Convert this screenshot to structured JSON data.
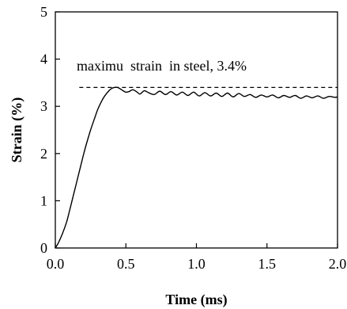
{
  "chart_data": {
    "type": "line",
    "xlabel": "Time (ms)",
    "ylabel": "Strain (%)",
    "xlim": [
      0,
      2
    ],
    "ylim": [
      0,
      5
    ],
    "x_ticks": [
      "0.0",
      "0.5",
      "1.0",
      "1.5",
      "2.0"
    ],
    "y_ticks": [
      "0",
      "1",
      "2",
      "3",
      "4",
      "5"
    ],
    "grid": false,
    "legend": "none",
    "annotation": "maximu  strain  in steel, 3.4%",
    "reference_line": {
      "y": 3.4,
      "style": "dashed"
    },
    "series": [
      {
        "color": "#000000",
        "x": [
          0.0,
          0.02,
          0.05,
          0.08,
          0.1,
          0.12,
          0.15,
          0.18,
          0.2,
          0.22,
          0.25,
          0.28,
          0.3,
          0.33,
          0.35,
          0.38,
          0.4,
          0.42,
          0.44,
          0.46,
          0.48,
          0.5,
          0.52,
          0.55,
          0.58,
          0.6,
          0.63,
          0.66,
          0.7,
          0.74,
          0.78,
          0.82,
          0.86,
          0.9,
          0.94,
          0.98,
          1.02,
          1.06,
          1.1,
          1.14,
          1.18,
          1.22,
          1.26,
          1.3,
          1.34,
          1.38,
          1.42,
          1.46,
          1.5,
          1.54,
          1.58,
          1.62,
          1.66,
          1.7,
          1.74,
          1.78,
          1.82,
          1.86,
          1.9,
          1.94,
          1.98,
          2.0
        ],
        "y": [
          0.0,
          0.1,
          0.3,
          0.55,
          0.78,
          1.02,
          1.38,
          1.74,
          1.98,
          2.2,
          2.5,
          2.76,
          2.93,
          3.12,
          3.22,
          3.33,
          3.38,
          3.4,
          3.4,
          3.37,
          3.33,
          3.3,
          3.31,
          3.35,
          3.3,
          3.26,
          3.33,
          3.29,
          3.25,
          3.32,
          3.25,
          3.31,
          3.24,
          3.3,
          3.23,
          3.3,
          3.22,
          3.29,
          3.22,
          3.28,
          3.21,
          3.28,
          3.2,
          3.27,
          3.21,
          3.25,
          3.19,
          3.24,
          3.2,
          3.24,
          3.18,
          3.23,
          3.19,
          3.23,
          3.17,
          3.22,
          3.18,
          3.22,
          3.17,
          3.21,
          3.19,
          3.2
        ]
      }
    ]
  }
}
